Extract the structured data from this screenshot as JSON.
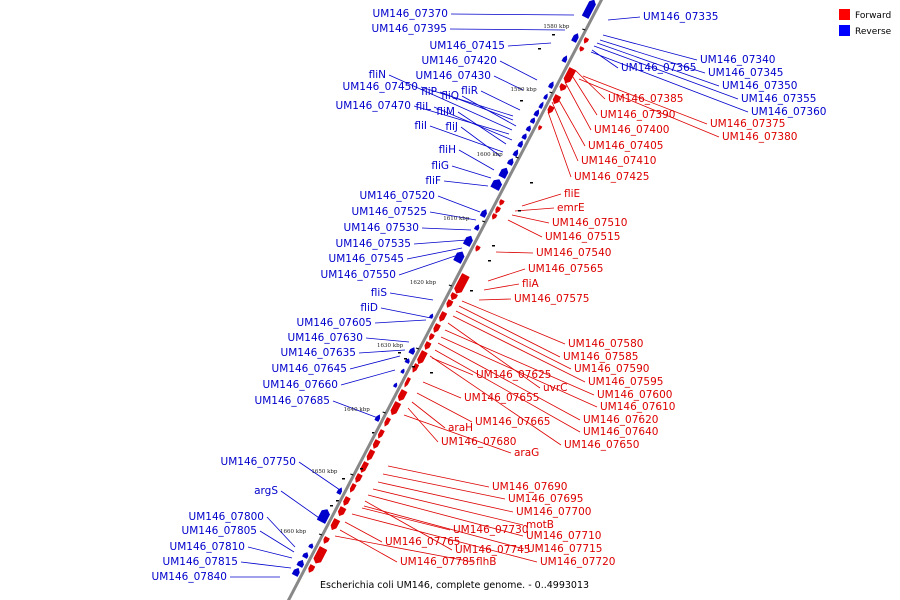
{
  "caption": "Escherichia coli UM146, complete genome. - 0..4993013",
  "legend": {
    "forward": "Forward",
    "reverse": "Reverse",
    "forward_color": "#ff0000",
    "reverse_color": "#0000ff"
  },
  "colors": {
    "forward": "#dd0000",
    "reverse": "#0000cc",
    "backbone": "#888888"
  },
  "scale_marks": [
    "1580 kbp",
    "1590 kbp",
    "1600 kbp",
    "1610 kbp",
    "1620 kbp",
    "1630 kbp",
    "1640 kbp",
    "1650 kbp",
    "1660 kbp"
  ],
  "reverse_genes": [
    "UM146_07370",
    "UM146_07395",
    "UM146_07415",
    "UM146_07420",
    "fliN",
    "UM146_07430",
    "UM146_07450",
    "fliP",
    "fliR",
    "fliQ",
    "UM146_07470",
    "fliL",
    "fliM",
    "fliI",
    "fliJ",
    "fliH",
    "fliG",
    "fliF",
    "UM146_07520",
    "UM146_07525",
    "UM146_07530",
    "UM146_07535",
    "UM146_07545",
    "UM146_07550",
    "fliS",
    "fliD",
    "UM146_07605",
    "UM146_07630",
    "UM146_07635",
    "UM146_07645",
    "UM146_07660",
    "UM146_07685",
    "UM146_07750",
    "argS",
    "UM146_07800",
    "UM146_07805",
    "UM146_07810",
    "UM146_07815",
    "UM146_07840",
    "UM146_07335",
    "UM146_07340",
    "UM146_07345",
    "UM146_07365",
    "UM146_07350",
    "UM146_07355",
    "UM146_07360"
  ],
  "forward_genes": [
    "UM146_07385",
    "UM146_07390",
    "UM146_07400",
    "UM146_07375",
    "UM146_07380",
    "UM146_07405",
    "UM146_07410",
    "UM146_07425",
    "fliE",
    "emrE",
    "UM146_07510",
    "UM146_07515",
    "UM146_07540",
    "UM146_07565",
    "fliA",
    "UM146_07575",
    "UM146_07580",
    "UM146_07585",
    "UM146_07590",
    "UM146_07595",
    "UM146_07625",
    "uvrC",
    "UM146_07600",
    "UM146_07610",
    "UM146_07655",
    "UM146_07620",
    "UM146_07665",
    "araH",
    "UM146_07640",
    "UM146_07680",
    "UM146_07650",
    "araG",
    "UM146_07690",
    "UM146_07695",
    "UM146_07700",
    "motB",
    "UM146_07730",
    "UM146_07710",
    "UM146_07765",
    "UM146_07745",
    "UM146_07715",
    "UM146_07785",
    "flhB",
    "UM146_07720"
  ]
}
